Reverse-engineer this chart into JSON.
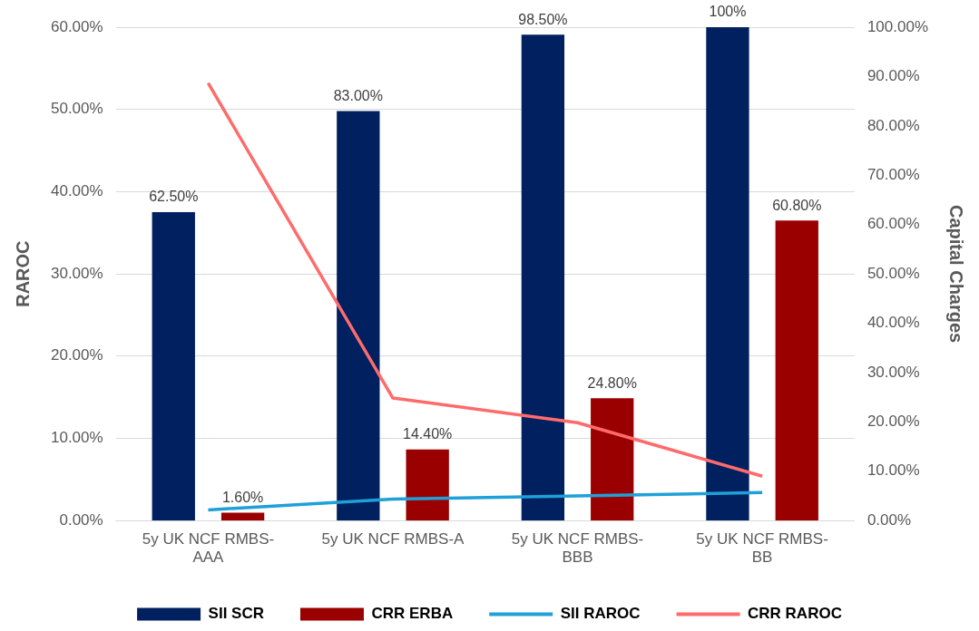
{
  "chart_data": {
    "type": "bar",
    "ylabel": "RAROC",
    "y2label": "Capital Charges",
    "categories": [
      "5y UK NCF RMBS-AAA",
      "5y UK NCF RMBS-A",
      "5y UK NCF RMBS-BBB",
      "5y UK NCF RMBS-BB"
    ],
    "series": [
      {
        "name": "SII SCR",
        "axis": "y2",
        "color": "#002060",
        "values": [
          62.5,
          83,
          98.5,
          100
        ],
        "value_labels": [
          "62.50%",
          "83.00%",
          "98.50%",
          "100%"
        ]
      },
      {
        "name": "CRR ERBA",
        "axis": "y2",
        "color": "#9b0000",
        "values": [
          1.6,
          14.4,
          24.8,
          60.8
        ],
        "value_labels": [
          "1.60%",
          "14.40%",
          "24.80%",
          "60.80%"
        ]
      },
      {
        "name": "SII RAROC",
        "type": "line",
        "axis": "y",
        "color": "#1fa0d8",
        "values": [
          1.3,
          2.6,
          3.0,
          3.4
        ]
      },
      {
        "name": "CRR RAROC",
        "type": "line",
        "axis": "y",
        "color": "#ff6b6b",
        "values": [
          53.2,
          14.9,
          11.9,
          5.4
        ]
      }
    ],
    "ylim": [
      0,
      60
    ],
    "yticks": [
      {
        "value": 0,
        "label": "0.00%"
      },
      {
        "value": 10,
        "label": "10.00%"
      },
      {
        "value": 20,
        "label": "20.00%"
      },
      {
        "value": 30,
        "label": "30.00%"
      },
      {
        "value": 40,
        "label": "40.00%"
      },
      {
        "value": 50,
        "label": "50.00%"
      },
      {
        "value": 60,
        "label": "60.00%"
      }
    ],
    "y2lim": [
      0,
      100
    ],
    "y2ticks": [
      {
        "value": 0,
        "label": "0.00%"
      },
      {
        "value": 10,
        "label": "10.00%"
      },
      {
        "value": 20,
        "label": "20.00%"
      },
      {
        "value": 30,
        "label": "30.00%"
      },
      {
        "value": 40,
        "label": "40.00%"
      },
      {
        "value": 50,
        "label": "50.00%"
      },
      {
        "value": 60,
        "label": "60.00%"
      },
      {
        "value": 70,
        "label": "70.00%"
      },
      {
        "value": 80,
        "label": "80.00%"
      },
      {
        "value": 90,
        "label": "90.00%"
      },
      {
        "value": 100,
        "label": "100.00%"
      }
    ],
    "grid": "y",
    "legend": "bottom",
    "marker": "none",
    "line_style": "solid"
  }
}
